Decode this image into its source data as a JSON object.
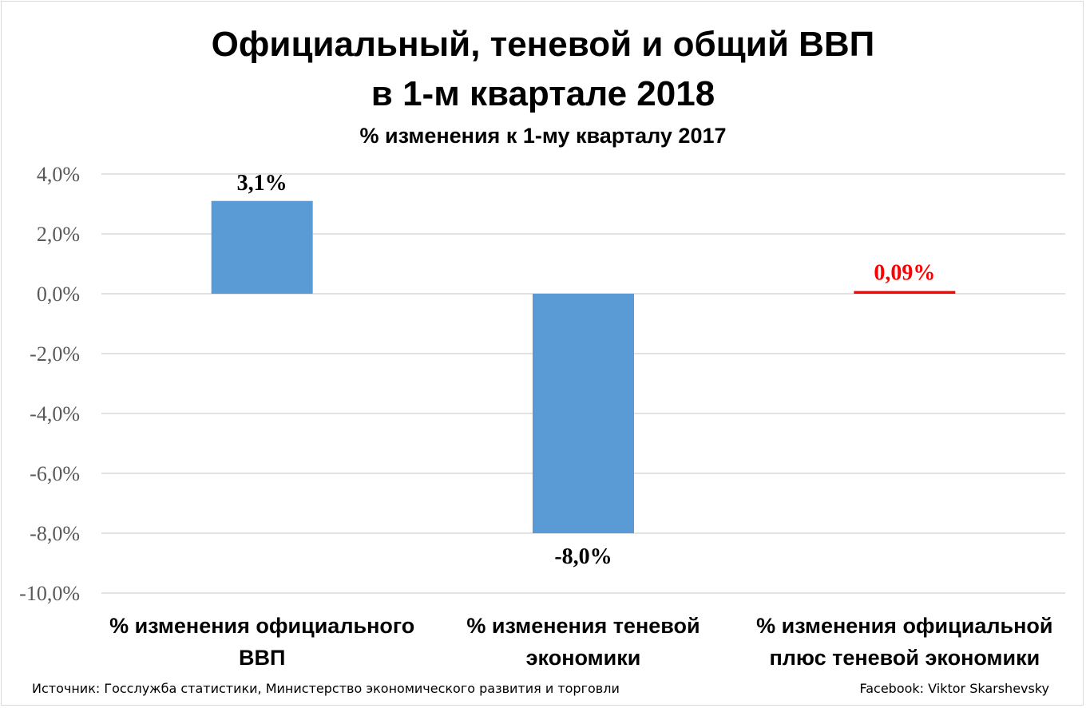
{
  "chart_data": {
    "type": "bar",
    "title_line1": "Официальный, теневой и общий ВВП",
    "title_line2": "в 1-м квартале 2018",
    "subtitle": "% изменения к 1-му кварталу 2017",
    "categories": [
      [
        "% изменения официального",
        "ВВП"
      ],
      [
        "% изменения теневой",
        "экономики"
      ],
      [
        "% изменения официальной",
        "плюс теневой экономики"
      ]
    ],
    "values": [
      3.1,
      -8.0,
      0.09
    ],
    "data_labels": [
      "3,1%",
      "-8,0%",
      "0,09%"
    ],
    "bar_colors": [
      "#5b9bd5",
      "#5b9bd5",
      "#ff0000"
    ],
    "label_colors": [
      "#000000",
      "#000000",
      "#ff0000"
    ],
    "ylim": [
      -10,
      4
    ],
    "yticks": [
      4,
      2,
      0,
      -2,
      -4,
      -6,
      -8,
      -10
    ],
    "ytick_labels": [
      "4,0%",
      "2,0%",
      "0,0%",
      "-2,0%",
      "-4,0%",
      "-6,0%",
      "-8,0%",
      "-10,0%"
    ],
    "grid": true,
    "legend": "none"
  },
  "footer": {
    "source": "Источник: Госслужба статистики, Министерство экономического развития и торговли",
    "credit": "Facebook: Viktor Skarshevsky"
  }
}
